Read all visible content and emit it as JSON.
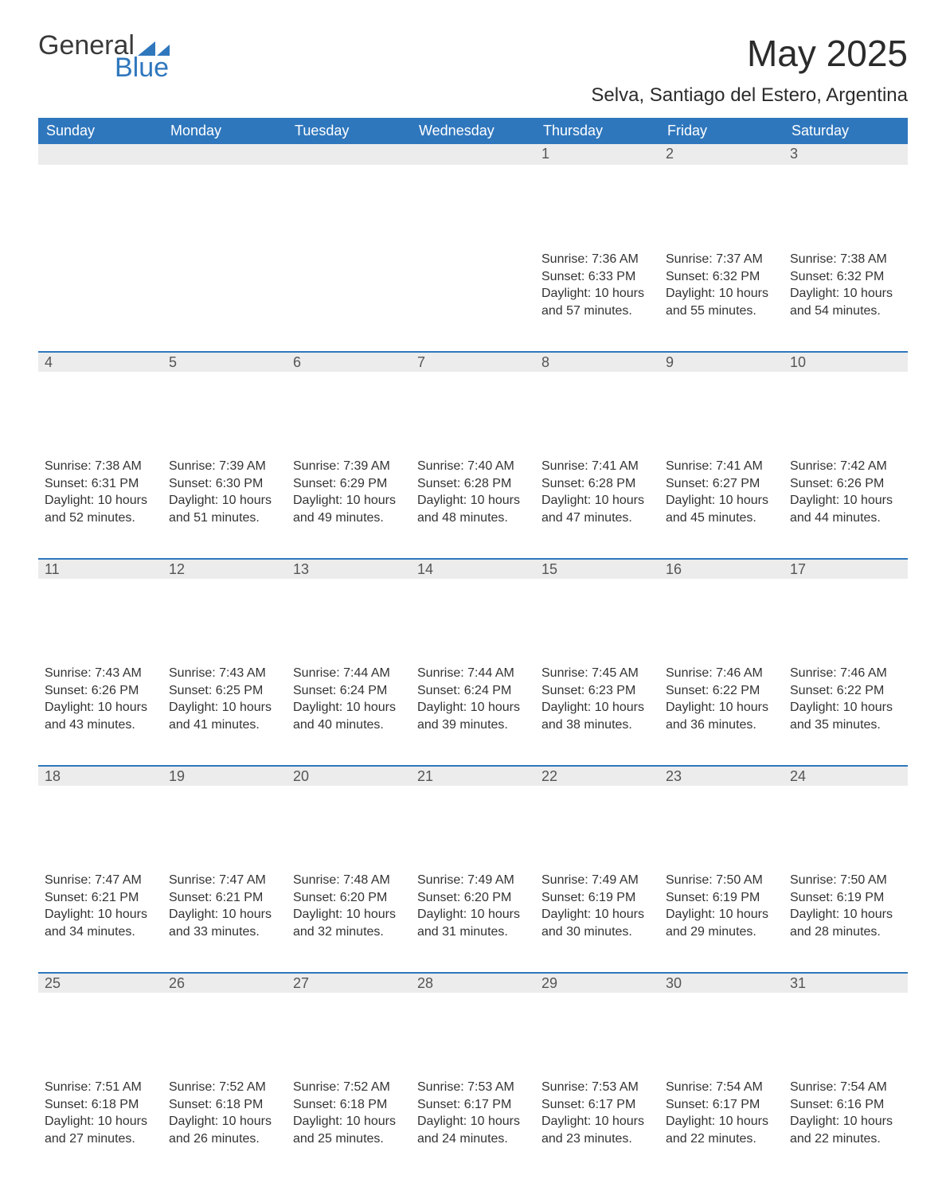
{
  "logo": {
    "word1": "General",
    "word2": "Blue",
    "triangle_color": "#2f77bd"
  },
  "title": "May 2025",
  "subtitle": "Selva, Santiago del Estero, Argentina",
  "colors": {
    "header_bg": "#2f77bd",
    "header_text": "#ffffff",
    "daynum_bg": "#ececec",
    "daynum_border": "#2f77bd",
    "body_text": "#333333",
    "page_bg": "#ffffff"
  },
  "weekdays": [
    "Sunday",
    "Monday",
    "Tuesday",
    "Wednesday",
    "Thursday",
    "Friday",
    "Saturday"
  ],
  "weeks": [
    [
      null,
      null,
      null,
      null,
      {
        "n": "1",
        "sunrise": "Sunrise: 7:36 AM",
        "sunset": "Sunset: 6:33 PM",
        "day1": "Daylight: 10 hours",
        "day2": "and 57 minutes."
      },
      {
        "n": "2",
        "sunrise": "Sunrise: 7:37 AM",
        "sunset": "Sunset: 6:32 PM",
        "day1": "Daylight: 10 hours",
        "day2": "and 55 minutes."
      },
      {
        "n": "3",
        "sunrise": "Sunrise: 7:38 AM",
        "sunset": "Sunset: 6:32 PM",
        "day1": "Daylight: 10 hours",
        "day2": "and 54 minutes."
      }
    ],
    [
      {
        "n": "4",
        "sunrise": "Sunrise: 7:38 AM",
        "sunset": "Sunset: 6:31 PM",
        "day1": "Daylight: 10 hours",
        "day2": "and 52 minutes."
      },
      {
        "n": "5",
        "sunrise": "Sunrise: 7:39 AM",
        "sunset": "Sunset: 6:30 PM",
        "day1": "Daylight: 10 hours",
        "day2": "and 51 minutes."
      },
      {
        "n": "6",
        "sunrise": "Sunrise: 7:39 AM",
        "sunset": "Sunset: 6:29 PM",
        "day1": "Daylight: 10 hours",
        "day2": "and 49 minutes."
      },
      {
        "n": "7",
        "sunrise": "Sunrise: 7:40 AM",
        "sunset": "Sunset: 6:28 PM",
        "day1": "Daylight: 10 hours",
        "day2": "and 48 minutes."
      },
      {
        "n": "8",
        "sunrise": "Sunrise: 7:41 AM",
        "sunset": "Sunset: 6:28 PM",
        "day1": "Daylight: 10 hours",
        "day2": "and 47 minutes."
      },
      {
        "n": "9",
        "sunrise": "Sunrise: 7:41 AM",
        "sunset": "Sunset: 6:27 PM",
        "day1": "Daylight: 10 hours",
        "day2": "and 45 minutes."
      },
      {
        "n": "10",
        "sunrise": "Sunrise: 7:42 AM",
        "sunset": "Sunset: 6:26 PM",
        "day1": "Daylight: 10 hours",
        "day2": "and 44 minutes."
      }
    ],
    [
      {
        "n": "11",
        "sunrise": "Sunrise: 7:43 AM",
        "sunset": "Sunset: 6:26 PM",
        "day1": "Daylight: 10 hours",
        "day2": "and 43 minutes."
      },
      {
        "n": "12",
        "sunrise": "Sunrise: 7:43 AM",
        "sunset": "Sunset: 6:25 PM",
        "day1": "Daylight: 10 hours",
        "day2": "and 41 minutes."
      },
      {
        "n": "13",
        "sunrise": "Sunrise: 7:44 AM",
        "sunset": "Sunset: 6:24 PM",
        "day1": "Daylight: 10 hours",
        "day2": "and 40 minutes."
      },
      {
        "n": "14",
        "sunrise": "Sunrise: 7:44 AM",
        "sunset": "Sunset: 6:24 PM",
        "day1": "Daylight: 10 hours",
        "day2": "and 39 minutes."
      },
      {
        "n": "15",
        "sunrise": "Sunrise: 7:45 AM",
        "sunset": "Sunset: 6:23 PM",
        "day1": "Daylight: 10 hours",
        "day2": "and 38 minutes."
      },
      {
        "n": "16",
        "sunrise": "Sunrise: 7:46 AM",
        "sunset": "Sunset: 6:22 PM",
        "day1": "Daylight: 10 hours",
        "day2": "and 36 minutes."
      },
      {
        "n": "17",
        "sunrise": "Sunrise: 7:46 AM",
        "sunset": "Sunset: 6:22 PM",
        "day1": "Daylight: 10 hours",
        "day2": "and 35 minutes."
      }
    ],
    [
      {
        "n": "18",
        "sunrise": "Sunrise: 7:47 AM",
        "sunset": "Sunset: 6:21 PM",
        "day1": "Daylight: 10 hours",
        "day2": "and 34 minutes."
      },
      {
        "n": "19",
        "sunrise": "Sunrise: 7:47 AM",
        "sunset": "Sunset: 6:21 PM",
        "day1": "Daylight: 10 hours",
        "day2": "and 33 minutes."
      },
      {
        "n": "20",
        "sunrise": "Sunrise: 7:48 AM",
        "sunset": "Sunset: 6:20 PM",
        "day1": "Daylight: 10 hours",
        "day2": "and 32 minutes."
      },
      {
        "n": "21",
        "sunrise": "Sunrise: 7:49 AM",
        "sunset": "Sunset: 6:20 PM",
        "day1": "Daylight: 10 hours",
        "day2": "and 31 minutes."
      },
      {
        "n": "22",
        "sunrise": "Sunrise: 7:49 AM",
        "sunset": "Sunset: 6:19 PM",
        "day1": "Daylight: 10 hours",
        "day2": "and 30 minutes."
      },
      {
        "n": "23",
        "sunrise": "Sunrise: 7:50 AM",
        "sunset": "Sunset: 6:19 PM",
        "day1": "Daylight: 10 hours",
        "day2": "and 29 minutes."
      },
      {
        "n": "24",
        "sunrise": "Sunrise: 7:50 AM",
        "sunset": "Sunset: 6:19 PM",
        "day1": "Daylight: 10 hours",
        "day2": "and 28 minutes."
      }
    ],
    [
      {
        "n": "25",
        "sunrise": "Sunrise: 7:51 AM",
        "sunset": "Sunset: 6:18 PM",
        "day1": "Daylight: 10 hours",
        "day2": "and 27 minutes."
      },
      {
        "n": "26",
        "sunrise": "Sunrise: 7:52 AM",
        "sunset": "Sunset: 6:18 PM",
        "day1": "Daylight: 10 hours",
        "day2": "and 26 minutes."
      },
      {
        "n": "27",
        "sunrise": "Sunrise: 7:52 AM",
        "sunset": "Sunset: 6:18 PM",
        "day1": "Daylight: 10 hours",
        "day2": "and 25 minutes."
      },
      {
        "n": "28",
        "sunrise": "Sunrise: 7:53 AM",
        "sunset": "Sunset: 6:17 PM",
        "day1": "Daylight: 10 hours",
        "day2": "and 24 minutes."
      },
      {
        "n": "29",
        "sunrise": "Sunrise: 7:53 AM",
        "sunset": "Sunset: 6:17 PM",
        "day1": "Daylight: 10 hours",
        "day2": "and 23 minutes."
      },
      {
        "n": "30",
        "sunrise": "Sunrise: 7:54 AM",
        "sunset": "Sunset: 6:17 PM",
        "day1": "Daylight: 10 hours",
        "day2": "and 22 minutes."
      },
      {
        "n": "31",
        "sunrise": "Sunrise: 7:54 AM",
        "sunset": "Sunset: 6:16 PM",
        "day1": "Daylight: 10 hours",
        "day2": "and 22 minutes."
      }
    ]
  ]
}
